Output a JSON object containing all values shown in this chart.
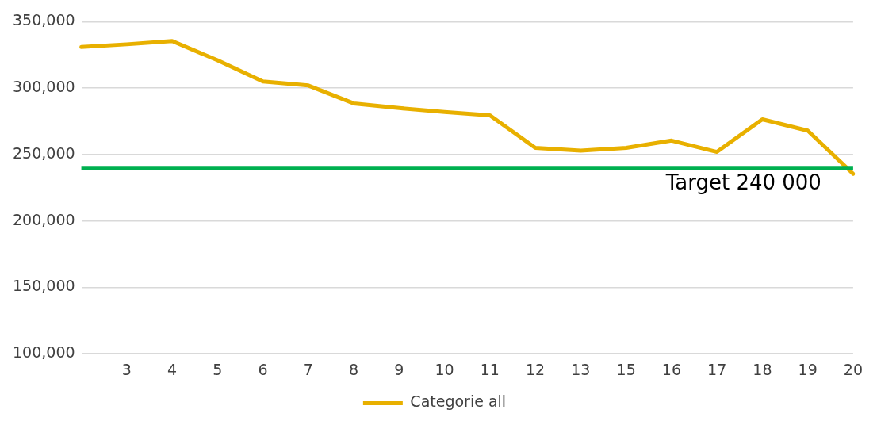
{
  "chart_data": {
    "type": "line",
    "categories": [
      null,
      "3",
      "4",
      "5",
      "6",
      "7",
      "8",
      "9",
      "10",
      "11",
      "12",
      "13",
      "15",
      "16",
      "17",
      "18",
      "19",
      "20"
    ],
    "series": [
      {
        "name": "Categorie all",
        "color": "#e8b000",
        "values": [
          331000,
          333000,
          335500,
          321000,
          305000,
          302000,
          288500,
          285000,
          282000,
          279500,
          255000,
          253000,
          255000,
          260500,
          252000,
          276500,
          268000,
          235500
        ]
      }
    ],
    "ylim": [
      100000,
      350000
    ],
    "yticks": [
      {
        "value": 100000,
        "label": "100,000"
      },
      {
        "value": 150000,
        "label": "150,000"
      },
      {
        "value": 200000,
        "label": "200,000"
      },
      {
        "value": 250000,
        "label": "250,000"
      },
      {
        "value": 300000,
        "label": "300,000"
      },
      {
        "value": 350000,
        "label": "350,000"
      }
    ],
    "grid": "y",
    "legend": "bottom",
    "marker": "none",
    "line_style": "solid",
    "ref_lines": [
      {
        "axis": "y",
        "value": 240000,
        "label": "Target 240 000",
        "color": "#00b050"
      }
    ]
  }
}
